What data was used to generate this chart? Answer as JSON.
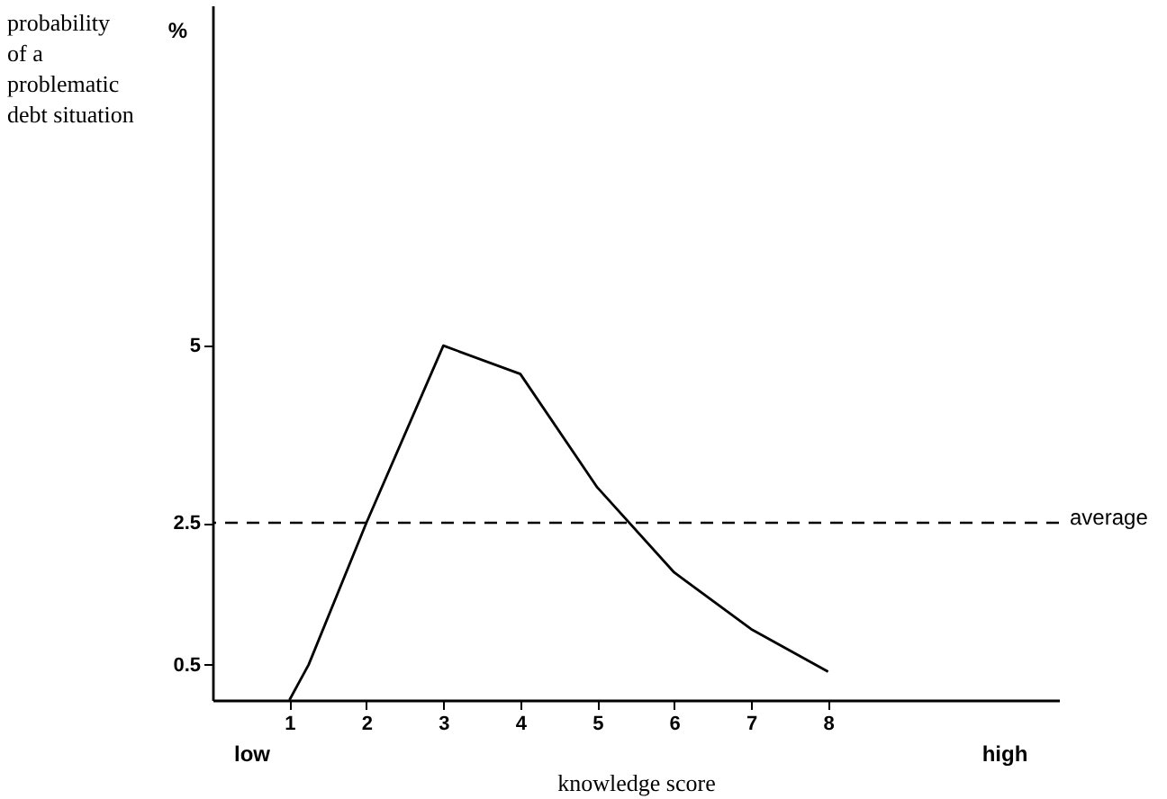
{
  "chart_data": {
    "type": "line",
    "xlabel": "knowledge score",
    "ylabel": "probability\nof a\nproblematic\ndebt situation",
    "annotations": [
      "%",
      "low",
      "high"
    ],
    "x": [
      1,
      1.25,
      2,
      3,
      4,
      5,
      6,
      7,
      8
    ],
    "values": [
      0,
      0.5,
      2.5,
      5,
      4.6,
      3,
      1.8,
      1,
      0.4
    ],
    "color": "#000000",
    "xlim": [
      0,
      11
    ],
    "xticks": [
      1,
      2,
      3,
      4,
      5,
      6,
      7,
      8
    ],
    "ylim": [
      0,
      9.8
    ],
    "yticks": [
      0.5,
      2.5,
      5
    ],
    "ref_lines": [
      {
        "axis": "y",
        "value": 2.5,
        "label": "average",
        "line_style": "dashed",
        "color": "#000000"
      }
    ],
    "grid": false,
    "marker": "none",
    "line_style": "solid"
  }
}
